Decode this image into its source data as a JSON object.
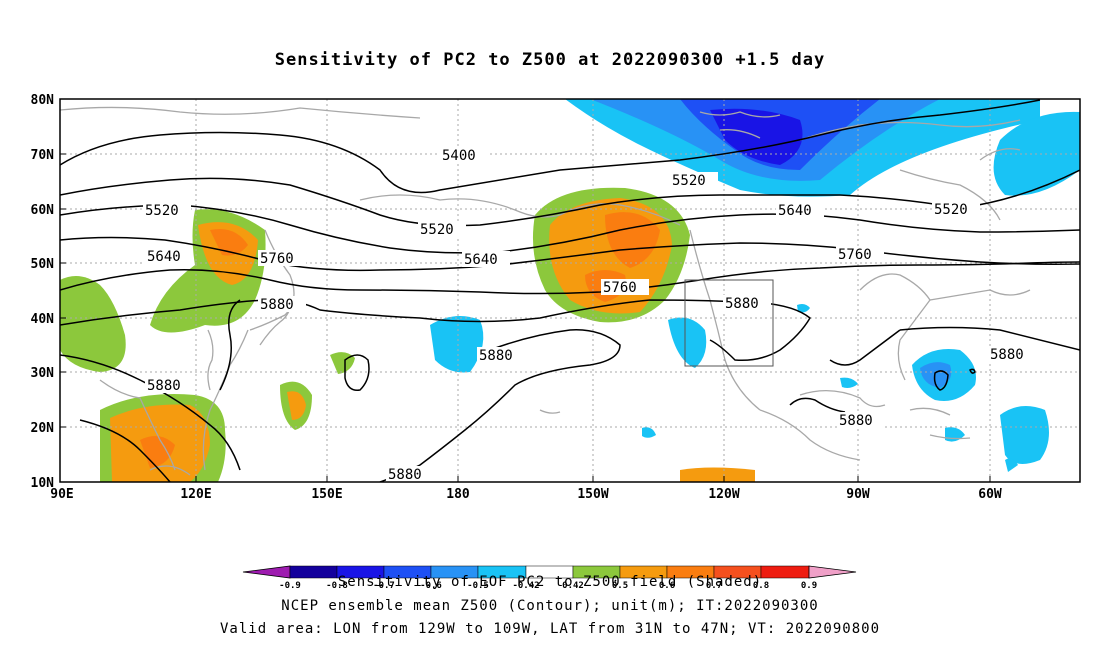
{
  "title": "Sensitivity of PC2 to Z500 at 2022090300 +1.5 day",
  "y_axis": [
    "80N",
    "70N",
    "60N",
    "50N",
    "40N",
    "30N",
    "20N",
    "10N"
  ],
  "x_axis": [
    "90E",
    "120E",
    "150E",
    "180",
    "150W",
    "120W",
    "90W",
    "60W"
  ],
  "contours": [
    {
      "label": "5400"
    },
    {
      "label": "5520"
    },
    {
      "label": "5520"
    },
    {
      "label": "5520"
    },
    {
      "label": "5520"
    },
    {
      "label": "5640"
    },
    {
      "label": "5640"
    },
    {
      "label": "5640"
    },
    {
      "label": "5760"
    },
    {
      "label": "5760"
    },
    {
      "label": "5760"
    },
    {
      "label": "5880"
    },
    {
      "label": "5880"
    },
    {
      "label": "5880"
    },
    {
      "label": "5880"
    },
    {
      "label": "5880"
    },
    {
      "label": "5880"
    },
    {
      "label": "5880"
    }
  ],
  "colorbar": {
    "colors": [
      "#9e1cb0",
      "#13009c",
      "#1914e6",
      "#1e50f5",
      "#2892f5",
      "#19c3f5",
      "#ffffff",
      "#8cc83c",
      "#f59b0f",
      "#fa7d10",
      "#f5501e",
      "#ee1c10",
      "#f0a0c8"
    ],
    "labels": [
      "-0.9",
      "-0.8",
      "-0.7",
      "-0.6",
      "-0.5",
      "-0.42",
      "0.42",
      "0.5",
      "0.6",
      "0.7",
      "0.8",
      "0.9"
    ]
  },
  "valid_box": {
    "lon": [
      -129,
      -109
    ],
    "lat": [
      31,
      47
    ]
  },
  "caption1": "Sensitivity of EOF PC2 to Z500 field (Shaded)",
  "caption2": "NCEP ensemble mean Z500 (Contour); unit(m); IT:2022090300",
  "caption3": "Valid area: LON from 129W to 109W, LAT from 31N to 47N; VT: 2022090800"
}
